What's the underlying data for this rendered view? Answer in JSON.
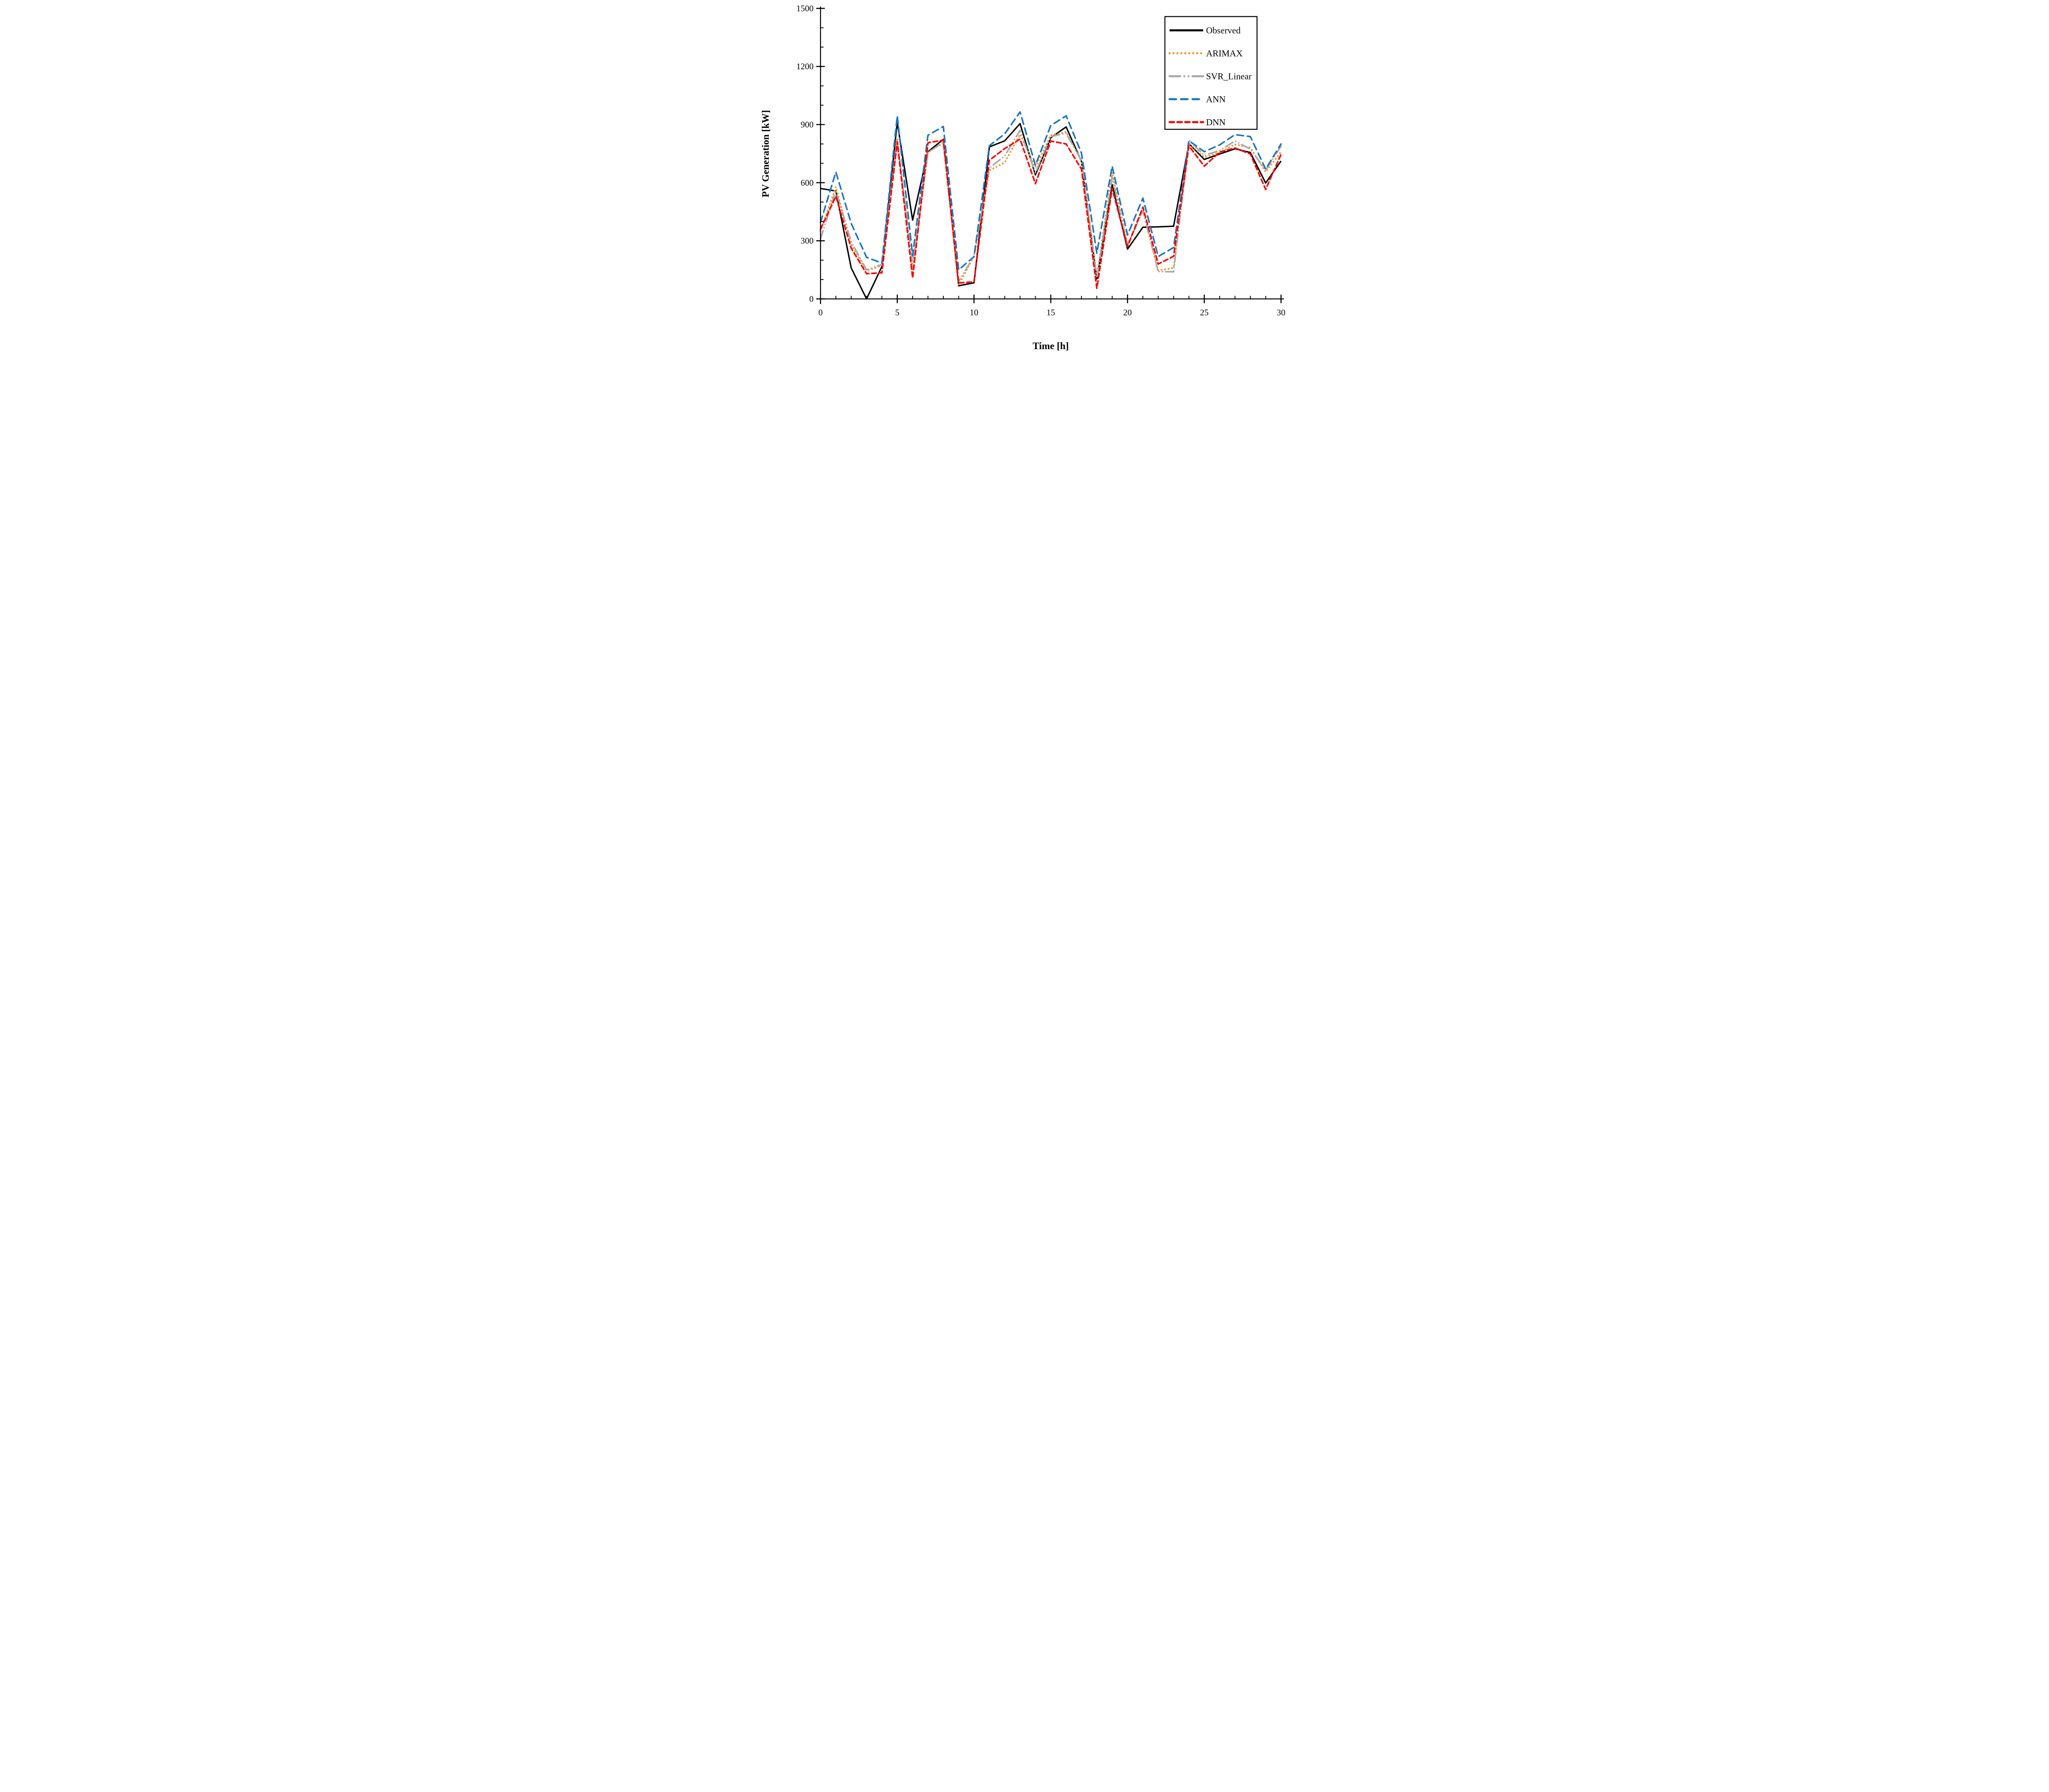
{
  "chart_data": {
    "type": "line",
    "title": "",
    "xlabel": "Time [h]",
    "ylabel": "PV Generation [kW]",
    "xlim": [
      0,
      30
    ],
    "ylim": [
      0,
      1500
    ],
    "grid": false,
    "legend_position": "top-right",
    "x_ticks_major": [
      0,
      5,
      10,
      15,
      20,
      25,
      30
    ],
    "x_tick_labels": [
      "0",
      "5",
      "10",
      "15",
      "20",
      "25",
      "30"
    ],
    "x_minor_step": 1,
    "y_ticks_major": [
      0,
      300,
      600,
      900,
      1200,
      1500
    ],
    "y_tick_labels": [
      "0",
      "300",
      "600",
      "900",
      "1200",
      "1500"
    ],
    "y_minor_step": 100,
    "x": [
      0,
      1,
      2,
      3,
      4,
      5,
      6,
      7,
      8,
      9,
      10,
      11,
      12,
      13,
      14,
      15,
      16,
      17,
      18,
      19,
      20,
      21,
      22,
      23,
      24,
      25,
      26,
      27,
      28,
      29,
      30
    ],
    "series": [
      {
        "name": "Observed",
        "color": "#000000",
        "style": "solid",
        "values": [
          570,
          557,
          160,
          0,
          167,
          912,
          407,
          760,
          824,
          68,
          83,
          785,
          816,
          905,
          640,
          832,
          888,
          710,
          103,
          590,
          257,
          370,
          372,
          375,
          802,
          720,
          748,
          775,
          756,
          598,
          712
        ]
      },
      {
        "name": "ARIMAX",
        "color": "#F78F1E",
        "style": "dotted",
        "values": [
          350,
          578,
          280,
          145,
          172,
          827,
          150,
          758,
          805,
          72,
          220,
          663,
          704,
          850,
          680,
          845,
          862,
          711,
          119,
          652,
          280,
          460,
          147,
          160,
          803,
          731,
          756,
          798,
          781,
          655,
          760
        ]
      },
      {
        "name": "SVR_Linear",
        "color": "#A8A8A8",
        "style": "dash-dot-dot",
        "values": [
          310,
          560,
          295,
          150,
          178,
          815,
          180,
          755,
          810,
          90,
          222,
          676,
          738,
          870,
          650,
          838,
          855,
          715,
          108,
          628,
          277,
          455,
          141,
          140,
          820,
          741,
          766,
          815,
          773,
          665,
          788
        ]
      },
      {
        "name": "ANN",
        "color": "#1B75C4",
        "style": "dashed",
        "values": [
          395,
          655,
          390,
          215,
          185,
          945,
          223,
          845,
          890,
          150,
          218,
          791,
          852,
          965,
          690,
          895,
          945,
          753,
          236,
          685,
          330,
          520,
          219,
          265,
          817,
          760,
          795,
          848,
          838,
          670,
          800
        ]
      },
      {
        "name": "DNN",
        "color": "#FA0000",
        "style": "dashed-dense",
        "values": [
          360,
          530,
          262,
          130,
          135,
          811,
          108,
          806,
          820,
          82,
          88,
          716,
          776,
          825,
          595,
          815,
          800,
          670,
          55,
          570,
          270,
          474,
          180,
          220,
          790,
          685,
          758,
          779,
          748,
          565,
          746
        ]
      }
    ]
  }
}
